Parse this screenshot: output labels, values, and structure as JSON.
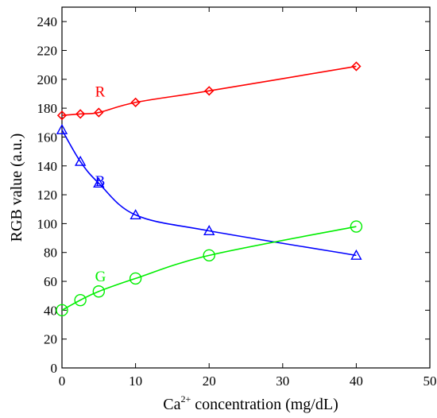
{
  "chart_data": {
    "type": "line",
    "title": "",
    "xlabel_prefix": "Ca",
    "xlabel_sup": "2+",
    "xlabel_suffix": " concentration (mg/dL)",
    "ylabel": "RGB value (a.u.)",
    "xlim": [
      0,
      50
    ],
    "ylim": [
      0,
      250
    ],
    "xticks": [
      0,
      10,
      20,
      30,
      40,
      50
    ],
    "yticks": [
      0,
      20,
      40,
      60,
      80,
      100,
      120,
      140,
      160,
      180,
      200,
      220,
      240
    ],
    "grid": false,
    "x": [
      0,
      2.5,
      5,
      10,
      20,
      40
    ],
    "series": [
      {
        "name": "R",
        "color": "#ff0000",
        "marker": "diamond",
        "values": [
          175,
          176,
          177,
          184,
          192,
          209
        ],
        "label_at": [
          4.5,
          188
        ]
      },
      {
        "name": "B",
        "color": "#0000ff",
        "marker": "triangle",
        "values": [
          165,
          143,
          128,
          106,
          95,
          78
        ],
        "label_at": [
          4.5,
          126
        ]
      },
      {
        "name": "G",
        "color": "#00ee00",
        "marker": "circle",
        "values": [
          40,
          47,
          53,
          62,
          78,
          98
        ],
        "label_at": [
          4.5,
          60
        ]
      }
    ]
  }
}
